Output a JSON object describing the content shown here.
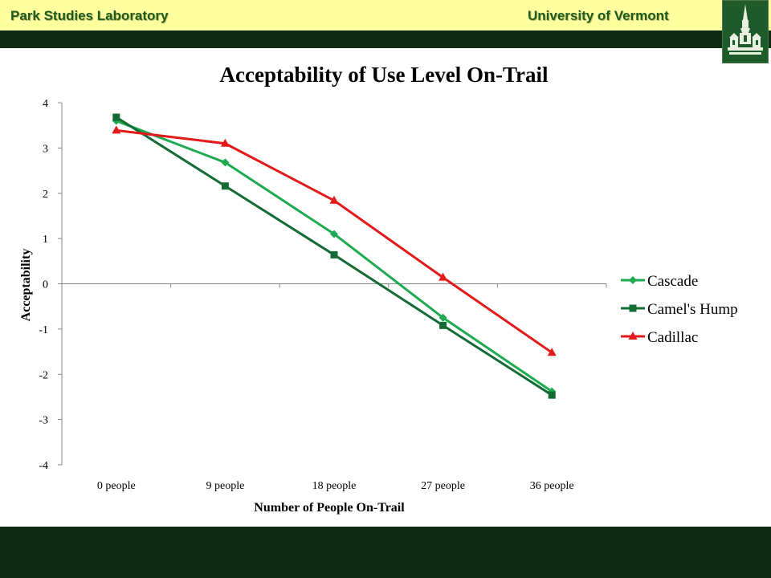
{
  "header": {
    "left": "Park Studies Laboratory",
    "right": "University of Vermont"
  },
  "colors": {
    "header_band": "#ffffa0",
    "header_text": "#1e5a1e",
    "dark_band": "#0d2b13",
    "cascade": "#1eaa50",
    "camels_hump": "#156b35",
    "cadillac": "#e41a1a"
  },
  "logo": {
    "icon": "uvm-building-icon"
  },
  "chart_data": {
    "type": "line",
    "title": "Acceptability of Use Level On-Trail",
    "xlabel": "Number of People On-Trail",
    "ylabel": "Acceptability",
    "categories": [
      "0 people",
      "9 people",
      "18 people",
      "27 people",
      "36 people"
    ],
    "ylim": [
      -4,
      4
    ],
    "yticks": [
      "4",
      "3",
      "2",
      "1",
      "0",
      "-1",
      "-2",
      "-3",
      "-4"
    ],
    "grid": false,
    "legend_position": "right",
    "series": [
      {
        "name": "Cascade",
        "marker": "diamond",
        "color": "#1eaa50",
        "values": [
          3.6,
          2.68,
          1.1,
          -0.75,
          -2.38
        ]
      },
      {
        "name": "Camel's Hump",
        "marker": "square",
        "color": "#156b35",
        "values": [
          3.68,
          2.16,
          0.64,
          -0.92,
          -2.46
        ]
      },
      {
        "name": "Cadillac",
        "marker": "triangle",
        "color": "#e41a1a",
        "values": [
          3.39,
          3.1,
          1.84,
          0.14,
          -1.52
        ]
      }
    ]
  }
}
